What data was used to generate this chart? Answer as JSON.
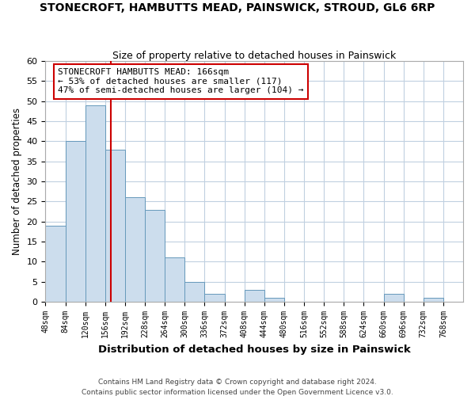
{
  "title": "STONECROFT, HAMBUTTS MEAD, PAINSWICK, STROUD, GL6 6RP",
  "subtitle": "Size of property relative to detached houses in Painswick",
  "xlabel": "Distribution of detached houses by size in Painswick",
  "ylabel": "Number of detached properties",
  "bar_edges": [
    48,
    84,
    120,
    156,
    192,
    228,
    264,
    300,
    336,
    372,
    408,
    444,
    480,
    516,
    552,
    588,
    624,
    660,
    696,
    732,
    768
  ],
  "bar_heights": [
    19,
    40,
    49,
    38,
    26,
    23,
    11,
    5,
    2,
    0,
    3,
    1,
    0,
    0,
    0,
    0,
    0,
    2,
    0,
    1,
    0
  ],
  "bar_color": "#ccdded",
  "bar_edge_color": "#6699bb",
  "vline_x": 166,
  "vline_color": "#cc0000",
  "annotation_text": "STONECROFT HAMBUTTS MEAD: 166sqm\n← 53% of detached houses are smaller (117)\n47% of semi-detached houses are larger (104) →",
  "annotation_box_color": "#ffffff",
  "annotation_box_edge": "#cc0000",
  "ylim": [
    0,
    60
  ],
  "yticks": [
    0,
    5,
    10,
    15,
    20,
    25,
    30,
    35,
    40,
    45,
    50,
    55,
    60
  ],
  "footer_line1": "Contains HM Land Registry data © Crown copyright and database right 2024.",
  "footer_line2": "Contains public sector information licensed under the Open Government Licence v3.0.",
  "bg_color": "#ffffff",
  "grid_color": "#c0d0e0"
}
